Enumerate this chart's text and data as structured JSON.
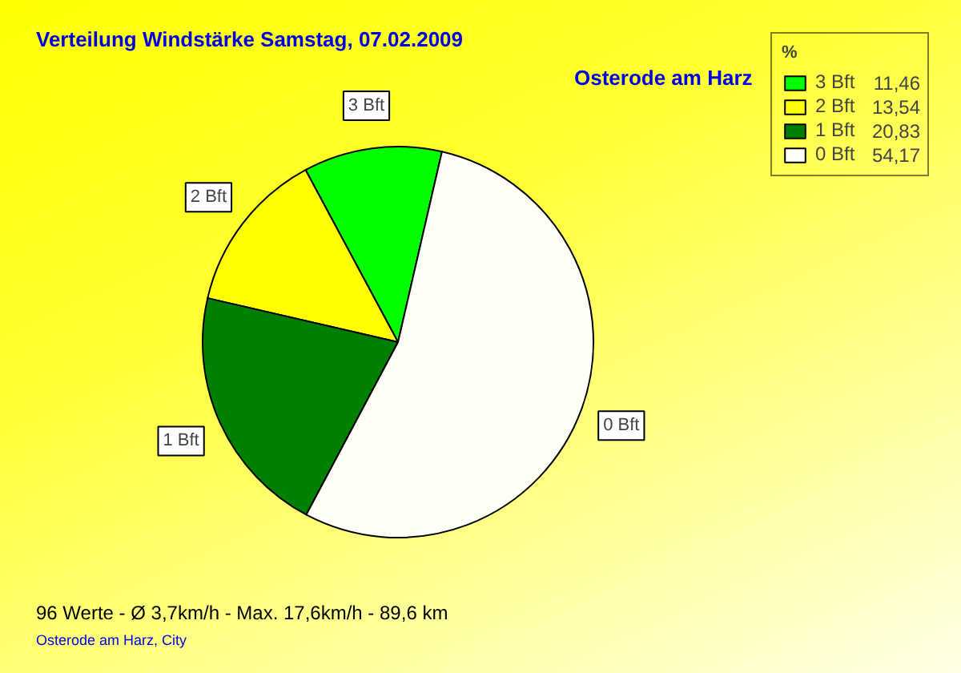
{
  "chart_data": {
    "type": "pie",
    "title": "Verteilung Windstärke Samstag, 07.02.2009",
    "subtitle": "Osterode am Harz",
    "categories": [
      "3 Bft",
      "2 Bft",
      "1 Bft",
      "0 Bft"
    ],
    "values": [
      11.46,
      13.54,
      20.83,
      54.17
    ],
    "value_labels": [
      "11,46",
      "13,54",
      "20,83",
      "54,17"
    ],
    "colors": [
      "#00ff00",
      "#ffff00",
      "#008000",
      "#fffff5"
    ],
    "legend_title": "%",
    "legend": "top right",
    "annotations": [
      "96 Werte - Ø 3,7km/h - Max. 17,6km/h - 89,6 km",
      "Osterode am Harz, City"
    ]
  }
}
